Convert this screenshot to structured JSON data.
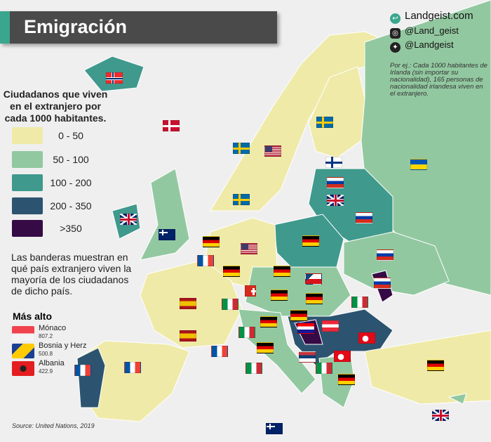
{
  "header": {
    "title": "Emigración"
  },
  "legend": {
    "title": "Ciudadanos que viven en el extranjero por cada 1000 habitantes.",
    "bins": [
      {
        "label": "0  -  50",
        "color": "#efeaa8"
      },
      {
        "label": "50 - 100",
        "color": "#92c8a0"
      },
      {
        "label": "100 - 200",
        "color": "#3f998d"
      },
      {
        "label": "200 - 350",
        "color": "#2c5470"
      },
      {
        "label": ">350",
        "color": "#360a45"
      }
    ]
  },
  "note": "Las banderas muestran en qué país extranjero viven la mayoría de los ciudadanos de dicho país.",
  "highest": {
    "title": "Más alto",
    "items": [
      {
        "country": "Mónaco",
        "value": "807.2",
        "flag": "monaco-flag"
      },
      {
        "country": "Bosnia y Herz",
        "value": "500.8",
        "flag": "bosnia-flag"
      },
      {
        "country": "Albania",
        "value": "422.9",
        "flag": "albania-flag"
      }
    ]
  },
  "source": "Source: United Nations, 2019",
  "brand": {
    "site": "Landgeist.com",
    "instagram": "@Land_geist",
    "twitter": "@Landgeist"
  },
  "example": "Por ej.: Cada 1000 habitantes de Irlanda (sin importar su nacionalidad), 165 personas de nacionalidad irlandesa viven en el extranjero.",
  "colors": {
    "sea": "#efefef",
    "title_bg": "#4a4a4a",
    "accent": "#3aa68e"
  }
}
